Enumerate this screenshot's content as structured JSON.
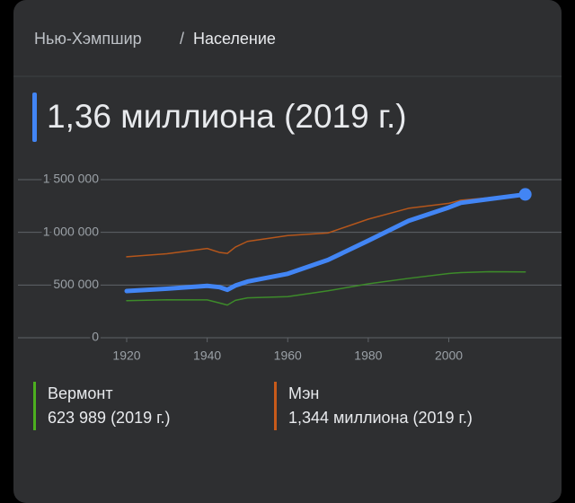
{
  "breadcrumb": {
    "items": [
      "Нью-Хэмпшир",
      "Население"
    ],
    "separator": "/"
  },
  "chart_data": {
    "type": "line",
    "title": "1,36 миллиона (2019 г.)",
    "x": [
      1920,
      1930,
      1940,
      1943,
      1945,
      1947,
      1950,
      1960,
      1970,
      1980,
      1990,
      2000,
      2003,
      2010,
      2019
    ],
    "series": [
      {
        "color": "#4285f4",
        "values": [
          443000,
          465000,
          492000,
          480000,
          455000,
          495000,
          533000,
          607000,
          738000,
          921000,
          1109000,
          1236000,
          1280000,
          1316000,
          1360000
        ]
      },
      {
        "name": "Вермонт",
        "color": "#3d8b2a",
        "legend_color": "#4caf1f",
        "value_label": "623 989 (2019 г.)",
        "values": [
          352000,
          360000,
          359000,
          330000,
          310000,
          355000,
          378000,
          390000,
          445000,
          511000,
          563000,
          609000,
          618000,
          626000,
          623989
        ]
      },
      {
        "name": "Мэн",
        "color": "#b5561b",
        "legend_color": "#c85a1a",
        "value_label": "1,344 миллиона (2019 г.)",
        "values": [
          768000,
          797000,
          847000,
          810000,
          800000,
          860000,
          914000,
          969000,
          994000,
          1125000,
          1228000,
          1275000,
          1305000,
          1328000,
          1344000
        ]
      }
    ],
    "xlim": [
      1893,
      2028
    ],
    "xticks": [
      1920,
      1940,
      1960,
      1980,
      2000
    ],
    "ylim": [
      0,
      1500000
    ],
    "yticks": [
      0,
      {
        "value": 500000,
        "label": "500 000"
      },
      {
        "value": 1000000,
        "label": "1 000 000"
      },
      {
        "value": 1500000,
        "label": "1 500 000"
      }
    ],
    "grid": true
  }
}
